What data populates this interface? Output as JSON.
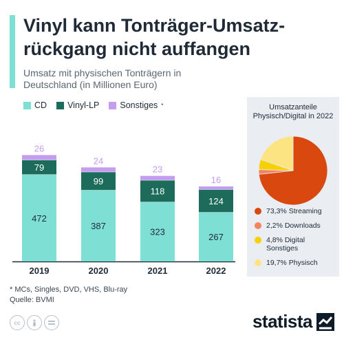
{
  "header": {
    "title": "Vinyl kann Tonträger-Umsatz-rückgang nicht auffangen",
    "subtitle": "Umsatz mit physischen Tonträgern in Deutschland (in Millionen Euro)"
  },
  "legend": {
    "items": [
      {
        "label": "CD",
        "color": "#7ee0d5"
      },
      {
        "label": "Vinyl-LP",
        "color": "#1d6b5a"
      },
      {
        "label": "Sonstiges",
        "color": "#c49cf0"
      }
    ],
    "footnote_mark": "*"
  },
  "pie_panel": {
    "title": "Umsatzanteile Physisch/Digital in 2022"
  },
  "footer": {
    "note": "* MCs, Singles, DVD, VHS, Blu-ray",
    "source": "Quelle: BVMI",
    "logo_text": "statista",
    "icons": [
      "cc-icon",
      "person-icon",
      "equals-icon"
    ]
  },
  "chart_data": [
    {
      "type": "bar",
      "stacked": true,
      "categories": [
        "2019",
        "2020",
        "2021",
        "2022"
      ],
      "series": [
        {
          "name": "CD",
          "values": [
            472,
            387,
            323,
            267
          ],
          "color": "#7ee0d5"
        },
        {
          "name": "Vinyl-LP",
          "values": [
            79,
            99,
            118,
            124
          ],
          "color": "#1d6b5a"
        },
        {
          "name": "Sonstiges",
          "values": [
            26,
            24,
            23,
            16
          ],
          "color": "#c49cf0"
        }
      ],
      "title": "Umsatz mit physischen Tonträgern in Deutschland (in Millionen Euro)",
      "grid": false,
      "legend_position": "top-left"
    },
    {
      "type": "pie",
      "title": "Umsatzanteile Physisch/Digital in 2022",
      "slices": [
        {
          "label": "73,3% Streaming",
          "value": 73.3,
          "color": "#d9480f"
        },
        {
          "label": "2,2% Downloads",
          "value": 2.2,
          "color": "#f4845f"
        },
        {
          "label": "4,8% Digital Sonstiges",
          "value": 4.8,
          "color": "#f7d000"
        },
        {
          "label": "19,7% Physisch",
          "value": 19.7,
          "color": "#fde482"
        }
      ]
    }
  ]
}
